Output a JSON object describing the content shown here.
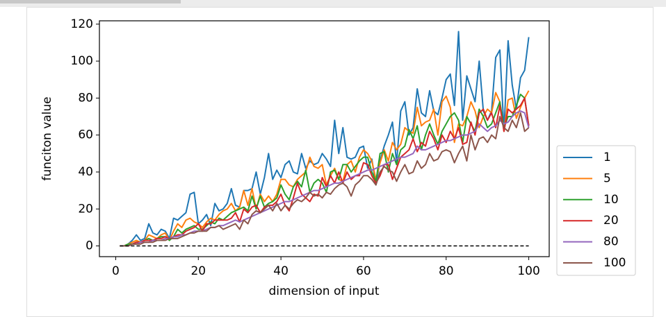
{
  "chart_data": {
    "type": "line",
    "xlabel": "dimension of input",
    "ylabel": "funciton value",
    "xlim": [
      -3.95,
      104.95
    ],
    "xticks": [
      0,
      20,
      40,
      60,
      80,
      100
    ],
    "ylim": [
      -5.8,
      121.8
    ],
    "yticks": [
      0,
      20,
      40,
      60,
      80,
      100,
      120
    ],
    "legend": "outside right",
    "x": [
      1,
      2,
      3,
      4,
      5,
      6,
      7,
      8,
      9,
      10,
      11,
      12,
      13,
      14,
      15,
      16,
      17,
      18,
      19,
      20,
      21,
      22,
      23,
      24,
      25,
      26,
      27,
      28,
      29,
      30,
      31,
      32,
      33,
      34,
      35,
      36,
      37,
      38,
      39,
      40,
      41,
      42,
      43,
      44,
      45,
      46,
      47,
      48,
      49,
      50,
      51,
      52,
      53,
      54,
      55,
      56,
      57,
      58,
      59,
      60,
      61,
      62,
      63,
      64,
      65,
      66,
      67,
      68,
      69,
      70,
      71,
      72,
      73,
      74,
      75,
      76,
      77,
      78,
      79,
      80,
      81,
      82,
      83,
      84,
      85,
      86,
      87,
      88,
      89,
      90,
      91,
      92,
      93,
      94,
      95,
      96,
      97,
      98,
      99,
      100
    ],
    "series": [
      {
        "name": "1",
        "color": "#1f77b4",
        "values": [
          0,
          0,
          1,
          3,
          6,
          3,
          4,
          12,
          7,
          6,
          9,
          8,
          4,
          15,
          14,
          16,
          18,
          28,
          29,
          12,
          14,
          17,
          11,
          23,
          19,
          20,
          23,
          31,
          22,
          21,
          30,
          30,
          31,
          40,
          28,
          37,
          50,
          36,
          41,
          37,
          44,
          46,
          40,
          39,
          50,
          42,
          46,
          44,
          45,
          50,
          47,
          43,
          68,
          50,
          64,
          48,
          47,
          48,
          53,
          54,
          42,
          47,
          33,
          46,
          54,
          60,
          67,
          45,
          73,
          78,
          60,
          64,
          85,
          72,
          70,
          84,
          73,
          71,
          80,
          90,
          93,
          76,
          116,
          68,
          92,
          85,
          78,
          100,
          73,
          68,
          73,
          102,
          106,
          62,
          111,
          87,
          74,
          91,
          95,
          113
        ]
      },
      {
        "name": "5",
        "color": "#ff7f0e",
        "values": [
          0,
          0,
          1,
          2,
          3,
          2,
          3,
          6,
          5,
          4,
          6,
          7,
          3,
          8,
          12,
          10,
          14,
          15,
          13,
          12,
          10,
          13,
          15,
          14,
          17,
          19,
          20,
          23,
          19,
          21,
          30,
          22,
          31,
          20,
          28,
          24,
          27,
          24,
          28,
          36,
          36,
          33,
          32,
          36,
          38,
          40,
          48,
          43,
          42,
          44,
          33,
          38,
          42,
          36,
          35,
          44,
          46,
          40,
          48,
          52,
          50,
          46,
          36,
          45,
          52,
          46,
          56,
          52,
          55,
          64,
          62,
          61,
          75,
          65,
          67,
          68,
          74,
          60,
          78,
          81,
          75,
          56,
          66,
          65,
          70,
          78,
          73,
          64,
          70,
          74,
          72,
          83,
          78,
          62,
          79,
          80,
          69,
          75,
          80,
          84
        ]
      },
      {
        "name": "10",
        "color": "#2ca02c",
        "values": [
          0,
          0,
          1,
          1,
          2,
          2,
          3,
          4,
          3,
          4,
          5,
          5,
          3,
          5,
          9,
          7,
          9,
          10,
          11,
          9,
          9,
          11,
          13,
          12,
          15,
          14,
          16,
          18,
          19,
          20,
          21,
          19,
          27,
          20,
          27,
          21,
          23,
          24,
          26,
          33,
          28,
          25,
          32,
          35,
          32,
          41,
          29,
          34,
          36,
          34,
          29,
          40,
          41,
          36,
          44,
          44,
          40,
          43,
          46,
          48,
          48,
          40,
          35,
          50,
          51,
          40,
          50,
          44,
          52,
          54,
          63,
          58,
          65,
          52,
          60,
          66,
          60,
          55,
          62,
          66,
          70,
          72,
          68,
          56,
          70,
          66,
          62,
          74,
          70,
          64,
          66,
          72,
          78,
          64,
          70,
          70,
          76,
          82,
          80,
          65
        ]
      },
      {
        "name": "20",
        "color": "#d62728",
        "values": [
          0,
          0,
          0,
          1,
          2,
          2,
          3,
          3,
          3,
          4,
          4,
          5,
          4,
          5,
          6,
          6,
          8,
          9,
          10,
          12,
          8,
          12,
          12,
          14,
          14,
          14,
          14,
          15,
          18,
          13,
          20,
          18,
          21,
          22,
          18,
          21,
          22,
          22,
          24,
          28,
          22,
          19,
          26,
          34,
          28,
          26,
          24,
          28,
          27,
          37,
          32,
          38,
          34,
          40,
          34,
          40,
          36,
          38,
          38,
          45,
          44,
          38,
          34,
          38,
          44,
          44,
          36,
          42,
          48,
          50,
          52,
          58,
          51,
          56,
          54,
          62,
          58,
          52,
          60,
          56,
          62,
          58,
          64,
          55,
          56,
          67,
          60,
          72,
          74,
          68,
          72,
          64,
          76,
          62,
          74,
          72,
          74,
          76,
          80,
          65
        ]
      },
      {
        "name": "80",
        "color": "#9467bd",
        "values": [
          0,
          0,
          0,
          1,
          1,
          2,
          2,
          2,
          3,
          3,
          3,
          4,
          4,
          5,
          5,
          6,
          6,
          7,
          8,
          8,
          8,
          9,
          10,
          10,
          11,
          11,
          12,
          13,
          14,
          13,
          14,
          15,
          16,
          17,
          18,
          19,
          20,
          21,
          22,
          23,
          24,
          24,
          25,
          26,
          27,
          28,
          29,
          30,
          30,
          31,
          32,
          33,
          34,
          34,
          35,
          36,
          37,
          38,
          39,
          40,
          41,
          41,
          42,
          43,
          44,
          45,
          46,
          47,
          48,
          48,
          49,
          50,
          54,
          52,
          52,
          53,
          54,
          55,
          56,
          57,
          57,
          58,
          59,
          60,
          60,
          61,
          62,
          66,
          64,
          62,
          64,
          65,
          68,
          66,
          67,
          70,
          72,
          73,
          72,
          64
        ]
      },
      {
        "name": "100",
        "color": "#8c564b",
        "values": [
          0,
          0,
          0,
          1,
          1,
          1,
          2,
          2,
          2,
          3,
          3,
          3,
          4,
          4,
          4,
          5,
          6,
          7,
          7,
          8,
          8,
          8,
          10,
          10,
          11,
          9,
          10,
          11,
          12,
          9,
          14,
          12,
          17,
          19,
          18,
          20,
          22,
          19,
          23,
          19,
          22,
          20,
          23,
          25,
          24,
          26,
          29,
          27,
          28,
          26,
          29,
          28,
          31,
          33,
          34,
          32,
          27,
          33,
          35,
          38,
          38,
          36,
          33,
          40,
          43,
          41,
          40,
          35,
          40,
          44,
          39,
          40,
          46,
          42,
          44,
          50,
          46,
          47,
          51,
          52,
          51,
          45,
          50,
          54,
          46,
          60,
          52,
          58,
          59,
          56,
          60,
          58,
          70,
          64,
          62,
          68,
          64,
          72,
          62,
          64
        ]
      }
    ],
    "reference_line": {
      "x": [
        1,
        100
      ],
      "values": [
        0,
        0
      ],
      "color": "#000000",
      "style": "dashed"
    }
  }
}
